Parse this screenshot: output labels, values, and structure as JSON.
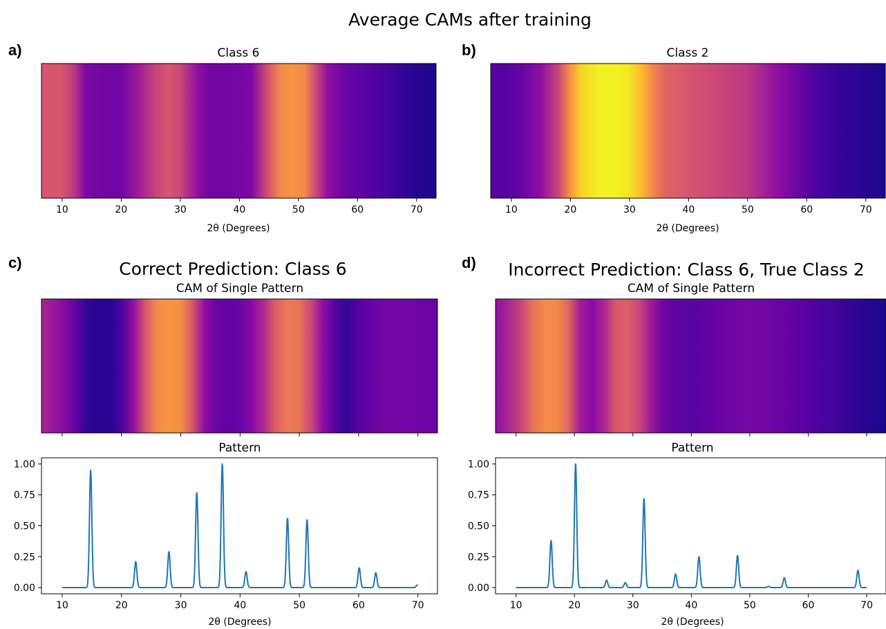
{
  "figure": {
    "title": "Average CAMs after training",
    "panel_labels": [
      "a)",
      "b)",
      "c)",
      "d)"
    ],
    "colormap_stops": [
      "#0d0887",
      "#5302a3",
      "#8b0aa5",
      "#b83289",
      "#db5c68",
      "#f48849",
      "#febd2a",
      "#f0f921"
    ]
  },
  "chart_data": [
    {
      "id": "a",
      "type": "heatmap",
      "title": "Class 6",
      "xlabel": "2θ (Degrees)",
      "xlim": [
        6.5,
        73.3
      ],
      "xticks": [
        10,
        20,
        30,
        40,
        50,
        60,
        70
      ],
      "x": [
        6.5,
        10,
        12,
        14,
        17,
        20,
        23,
        26,
        28,
        30,
        33,
        35,
        38,
        42,
        45,
        47,
        49,
        51,
        53,
        55,
        58,
        62,
        66,
        70,
        73.3
      ],
      "values": [
        0.55,
        0.55,
        0.45,
        0.25,
        0.22,
        0.22,
        0.35,
        0.5,
        0.55,
        0.5,
        0.3,
        0.22,
        0.22,
        0.25,
        0.55,
        0.72,
        0.75,
        0.72,
        0.5,
        0.3,
        0.2,
        0.15,
        0.1,
        0.05,
        0.03
      ]
    },
    {
      "id": "b",
      "type": "heatmap",
      "title": "Class 2",
      "xlabel": "2θ (Degrees)",
      "xlim": [
        6.5,
        73.3
      ],
      "xticks": [
        10,
        20,
        30,
        40,
        50,
        60,
        70
      ],
      "x": [
        6.5,
        9,
        12,
        15,
        18,
        20,
        22,
        25,
        28,
        30,
        32,
        34,
        36,
        40,
        45,
        50,
        55,
        58,
        62,
        66,
        70,
        73.3
      ],
      "values": [
        0.15,
        0.15,
        0.2,
        0.3,
        0.5,
        0.75,
        0.92,
        0.98,
        0.98,
        0.95,
        0.85,
        0.7,
        0.6,
        0.55,
        0.5,
        0.45,
        0.3,
        0.22,
        0.12,
        0.08,
        0.05,
        0.03
      ]
    },
    {
      "id": "c",
      "type": "heatmap",
      "suptitle": "Correct Prediction: Class 6",
      "title": "CAM of Single Pattern",
      "xlim": [
        6.5,
        73.3
      ],
      "xticks": [
        10,
        20,
        30,
        40,
        50,
        60,
        70
      ],
      "x": [
        6.5,
        9,
        12,
        14,
        16,
        18,
        20,
        22,
        24,
        26,
        28,
        30,
        32,
        34,
        36,
        38,
        40,
        42,
        44,
        46,
        48,
        50,
        52,
        54,
        56,
        58,
        60,
        64,
        68,
        73.3
      ],
      "values": [
        0.38,
        0.32,
        0.2,
        0.08,
        0.05,
        0.06,
        0.12,
        0.3,
        0.55,
        0.72,
        0.75,
        0.73,
        0.55,
        0.3,
        0.2,
        0.18,
        0.2,
        0.28,
        0.4,
        0.58,
        0.67,
        0.65,
        0.5,
        0.3,
        0.15,
        0.08,
        0.15,
        0.22,
        0.22,
        0.2
      ]
    },
    {
      "id": "c",
      "type": "line",
      "title": "Pattern",
      "xlabel": "2θ (Degrees)",
      "xlim": [
        6.5,
        73.3
      ],
      "ylim": [
        -0.05,
        1.05
      ],
      "xticks": [
        10,
        20,
        30,
        40,
        50,
        60,
        70
      ],
      "yticks": [
        0.0,
        0.25,
        0.5,
        0.75,
        1.0
      ],
      "ytick_labels": [
        "0.00",
        "0.25",
        "0.50",
        "0.75",
        "1.00"
      ],
      "range": [
        10,
        70
      ],
      "peak_width": 0.2,
      "peaks": [
        [
          14.8,
          0.95
        ],
        [
          22.4,
          0.21
        ],
        [
          28.0,
          0.29
        ],
        [
          32.7,
          0.77
        ],
        [
          37.0,
          1.0
        ],
        [
          41.0,
          0.13
        ],
        [
          48.0,
          0.56
        ],
        [
          51.3,
          0.55
        ],
        [
          60.1,
          0.16
        ],
        [
          62.9,
          0.12
        ],
        [
          69.9,
          0.02
        ]
      ]
    },
    {
      "id": "d",
      "type": "heatmap",
      "suptitle": "Incorrect Prediction: Class 6, True Class 2",
      "title": "CAM of Single Pattern",
      "xlim": [
        6.5,
        73.3
      ],
      "xticks": [
        10,
        20,
        30,
        40,
        50,
        60,
        70
      ],
      "x": [
        6.5,
        9,
        11,
        13,
        15,
        17,
        19,
        21,
        23,
        25,
        27,
        29,
        31,
        33,
        35,
        37,
        40,
        45,
        50,
        55,
        60,
        65,
        70,
        73.3
      ],
      "values": [
        0.3,
        0.4,
        0.5,
        0.65,
        0.72,
        0.72,
        0.6,
        0.35,
        0.28,
        0.38,
        0.55,
        0.58,
        0.5,
        0.35,
        0.22,
        0.18,
        0.16,
        0.2,
        0.23,
        0.2,
        0.15,
        0.1,
        0.05,
        0.03
      ]
    },
    {
      "id": "d",
      "type": "line",
      "title": "Pattern",
      "xlabel": "2θ (Degrees)",
      "xlim": [
        6.5,
        73.3
      ],
      "ylim": [
        -0.05,
        1.05
      ],
      "xticks": [
        10,
        20,
        30,
        40,
        50,
        60,
        70
      ],
      "yticks": [
        0.0,
        0.25,
        0.5,
        0.75,
        1.0
      ],
      "ytick_labels": [
        "0.00",
        "0.25",
        "0.50",
        "0.75",
        "1.00"
      ],
      "range": [
        10,
        70
      ],
      "peak_width": 0.2,
      "peaks": [
        [
          16.0,
          0.38
        ],
        [
          20.2,
          1.0
        ],
        [
          25.5,
          0.06
        ],
        [
          28.7,
          0.04
        ],
        [
          31.9,
          0.72
        ],
        [
          37.3,
          0.11
        ],
        [
          41.3,
          0.25
        ],
        [
          47.9,
          0.26
        ],
        [
          53.2,
          0.01
        ],
        [
          55.9,
          0.08
        ],
        [
          68.5,
          0.14
        ]
      ]
    }
  ]
}
